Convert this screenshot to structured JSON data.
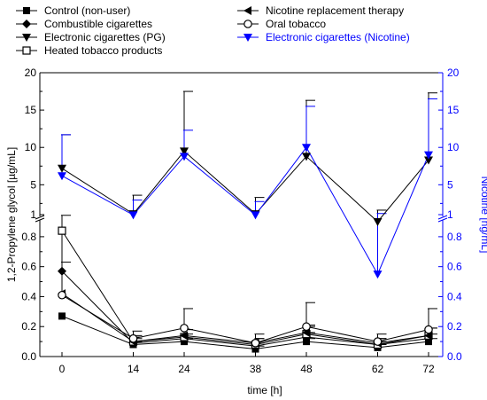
{
  "chart_data": {
    "type": "line",
    "xlabel": "time [h]",
    "ylabel_left": "1,2-Propylene glycol [µg/mL]",
    "ylabel_right": "Nicotine [ng/mL]",
    "x": [
      0,
      14,
      24,
      38,
      48,
      62,
      72
    ],
    "x_ticks": [
      "0",
      "14",
      "24",
      "38",
      "48",
      "62",
      "72"
    ],
    "y_ticks_lower": [
      "0.0",
      "0.2",
      "0.4",
      "0.6",
      "0.8"
    ],
    "y_ticks_upper": [
      "1",
      "5",
      "10",
      "15",
      "20"
    ],
    "axis_break": "between 0.9 and 1",
    "accent_color": "#0000ff",
    "series": [
      {
        "name": "Control (non-user)",
        "marker": "filled-square",
        "color": "#000000",
        "values": [
          0.27,
          0.08,
          0.1,
          0.05,
          0.1,
          0.06,
          0.1
        ],
        "error": [
          0,
          0.02,
          0.02,
          0.02,
          0.02,
          0.02,
          0.02
        ]
      },
      {
        "name": "Combustible cigarettes",
        "marker": "filled-diamond",
        "color": "#000000",
        "values": [
          0.57,
          0.09,
          0.12,
          0.07,
          0.13,
          0.08,
          0.12
        ],
        "error": [
          0.06,
          0.03,
          0.03,
          0.02,
          0.03,
          0.02,
          0.03
        ]
      },
      {
        "name": "Electronic cigarettes (PG)",
        "marker": "filled-triangle-down",
        "color": "#000000",
        "values": [
          7.2,
          1.1,
          9.5,
          1.1,
          8.8,
          0.9,
          8.3
        ],
        "error": [
          4.5,
          2.5,
          8.0,
          2.2,
          7.5,
          0.7,
          9.0
        ]
      },
      {
        "name": "Heated tobacco products",
        "marker": "open-square",
        "color": "#000000",
        "values": [
          0.84,
          0.1,
          0.13,
          0.08,
          0.15,
          0.08,
          0.14
        ],
        "error": [
          0,
          0.04,
          0.05,
          0.04,
          0.05,
          0.04,
          0.05
        ]
      },
      {
        "name": "Nicotine replacement therapy",
        "marker": "filled-triangle-left",
        "color": "#000000",
        "values": [
          0.42,
          0.1,
          0.14,
          0.09,
          0.16,
          0.09,
          0.14
        ],
        "error": [
          0,
          0.03,
          0.04,
          0.03,
          0.05,
          0.03,
          0.05
        ]
      },
      {
        "name": "Oral tobacco",
        "marker": "open-circle",
        "color": "#000000",
        "values": [
          0.41,
          0.12,
          0.19,
          0.09,
          0.2,
          0.1,
          0.18
        ],
        "error": [
          0.5,
          0.05,
          0.13,
          0.06,
          0.16,
          0.05,
          0.14
        ]
      },
      {
        "name": "Electronic cigarettes (Nicotine)",
        "marker": "filled-triangle-down",
        "color": "#0000ff",
        "axis": "right",
        "values": [
          6.2,
          0.95,
          8.8,
          0.95,
          10.0,
          0.55,
          9.0
        ],
        "error": [
          5.5,
          2.0,
          3.5,
          1.8,
          5.5,
          0.6,
          7.5
        ]
      }
    ],
    "legend": {
      "columns": 2,
      "placement": "top"
    },
    "grid": false
  }
}
